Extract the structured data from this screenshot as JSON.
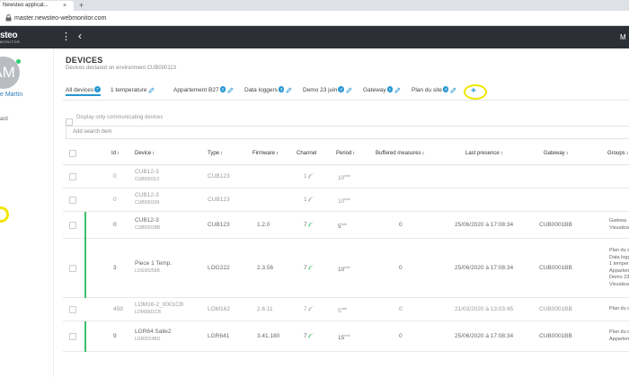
{
  "browser": {
    "tab_title": "Newsteo applicat...",
    "tab_close": "×",
    "new_tab": "+",
    "url": "master.newsteo-webmonitor.com"
  },
  "header": {
    "logo": "steo",
    "logo_sub": "MONITOR",
    "menu_icon": "⋮",
    "back_icon": "‹",
    "user_initial": "M"
  },
  "sidebar": {
    "avatar": "AM",
    "user_name": "e Martin",
    "item": "ard"
  },
  "page": {
    "title": "DEVICES",
    "subtitle": "Devices declared on environment CUB000113"
  },
  "tabs": [
    {
      "label": "All devices",
      "badge": "7",
      "pencil": false,
      "active": true
    },
    {
      "label": "1 temperature",
      "badge": "",
      "pencil": true,
      "active": false
    },
    {
      "label": "Appartement B27",
      "badge": "2",
      "pencil": true,
      "active": false
    },
    {
      "label": "Data loggers",
      "badge": "3",
      "pencil": true,
      "active": false
    },
    {
      "label": "Demo 23 juin",
      "badge": "3",
      "pencil": true,
      "active": false
    },
    {
      "label": "Gateway",
      "badge": "1",
      "pencil": true,
      "active": false
    },
    {
      "label": "Plan du site",
      "badge": "3",
      "pencil": true,
      "active": false
    }
  ],
  "add_tab": "+",
  "filter": {
    "label": "Display only communicating devices"
  },
  "search": {
    "placeholder": "Add search item"
  },
  "columns": {
    "id": "Id",
    "device": "Device",
    "type": "Type",
    "firmware": "Firmware",
    "channel": "Channel",
    "period": "Period",
    "buffered": "Buffered measures",
    "last_presence": "Last presence",
    "gateway": "Gateway",
    "groups": "Groups"
  },
  "sort_icon": "↕",
  "min_unit": "min",
  "rows": [
    {
      "id": "0",
      "device": "CUB12-3",
      "serial": "CUB000113",
      "type": "CUB123",
      "firmware": "",
      "channel": "1",
      "period": "10",
      "buffered": "",
      "last": "",
      "gateway": "",
      "groups": [],
      "bar": false,
      "active": false
    },
    {
      "id": "0",
      "device": "CUB12-3",
      "serial": "CUB000109",
      "type": "CUB123",
      "firmware": "",
      "channel": "1",
      "period": "10",
      "buffered": "",
      "last": "",
      "gateway": "",
      "groups": [],
      "bar": false,
      "active": false
    },
    {
      "id": "0",
      "device": "CUB12-3",
      "serial": "CUB0001BB",
      "type": "CUB123",
      "firmware": "1.2.0",
      "channel": "7",
      "period": "5",
      "buffered": "0",
      "last": "25/06/2020 à 17:08:34",
      "gateway": "CUB0001BB",
      "groups": [
        "Gatewa",
        "Visualizati"
      ],
      "bar": true,
      "active": true
    },
    {
      "id": "3",
      "device": "Piece 1 Temp.",
      "serial": "LOG00255B",
      "type": "LOG222",
      "firmware": "2.3.56",
      "channel": "7",
      "period": "10",
      "buffered": "0",
      "last": "25/06/2020 à 17:08:34",
      "gateway": "CUB0001BB",
      "groups": [
        "Plan du s",
        "Data logg",
        "1 temperat",
        "Appartemen",
        "Demo 23 J",
        "Visualizati"
      ],
      "bar": true,
      "active": true
    },
    {
      "id": "459",
      "device": "LOM16-2_0001CB",
      "serial": "LOM0001CB",
      "type": "LOM162",
      "firmware": "2.6.11",
      "channel": "7",
      "period": "5",
      "buffered": "0",
      "last": "21/03/2020 à 13:03:45",
      "gateway": "CUB0001BB",
      "groups": [
        "Plan du si"
      ],
      "bar": false,
      "active": false
    },
    {
      "id": "9",
      "device": "LGR64 Salle2",
      "serial": "LGR0024BD",
      "type": "LGR641",
      "firmware": "3.41.180",
      "channel": "7",
      "period": "15",
      "buffered": "0",
      "last": "25/06/2020 à 17:08:34",
      "gateway": "CUB0001BB",
      "groups": [
        "Plan du s",
        "Appartem"
      ],
      "bar": true,
      "active": true
    }
  ]
}
